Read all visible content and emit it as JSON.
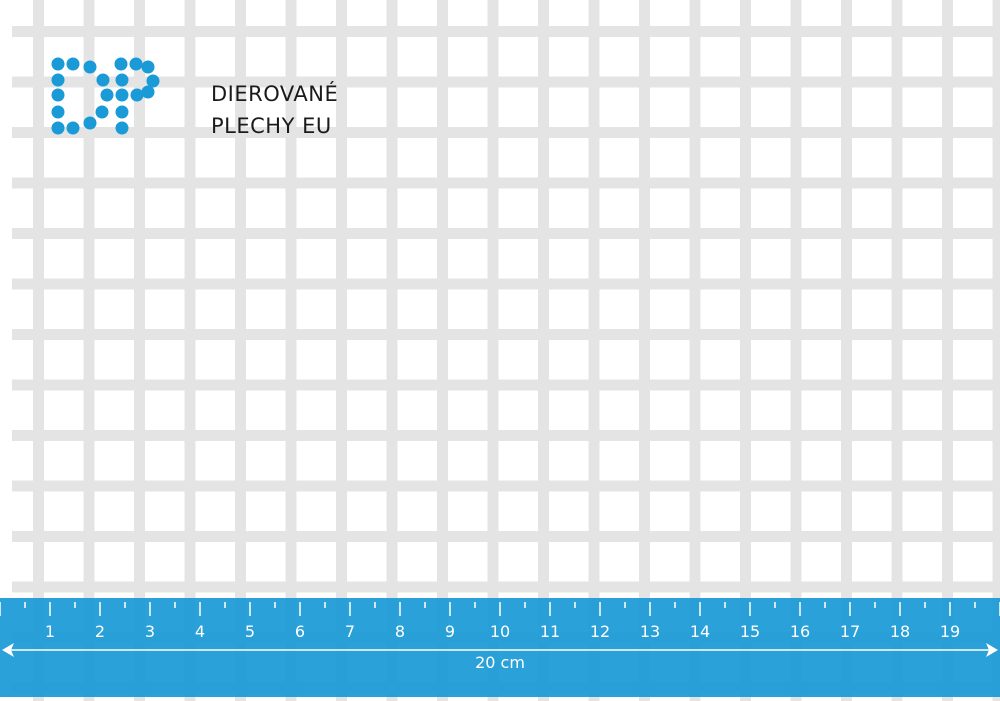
{
  "logo": {
    "monogram": "DP",
    "line1": "DIEROVANÉ",
    "line2": "PLECHY EU",
    "dot_color": "#1a9ad6"
  },
  "ruler": {
    "numbers": [
      "1",
      "2",
      "3",
      "4",
      "5",
      "6",
      "7",
      "8",
      "9",
      "10",
      "11",
      "12",
      "13",
      "14",
      "15",
      "16",
      "17",
      "18",
      "19"
    ],
    "length_label": "20 cm",
    "color": "#1a9ad6"
  },
  "sheet": {
    "material_color": "#e4e4e4",
    "hole_shape": "square"
  }
}
